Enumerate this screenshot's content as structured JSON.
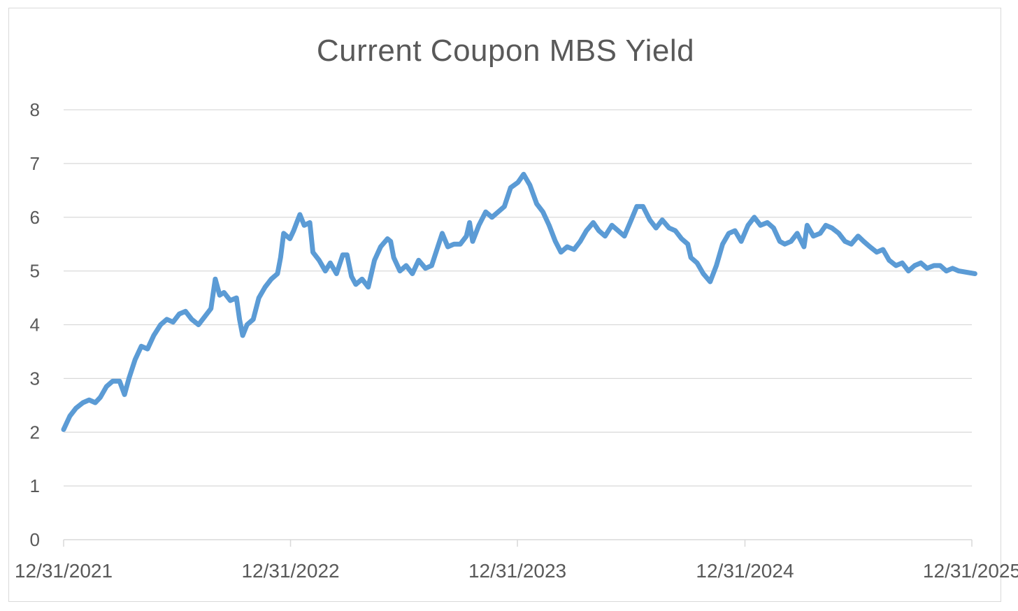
{
  "chart_data": {
    "type": "line",
    "title": "Current Coupon MBS Yield",
    "xlabel": "",
    "ylabel": "",
    "ylim": [
      0,
      8
    ],
    "yticks": [
      "0",
      "1",
      "2",
      "3",
      "4",
      "5",
      "6",
      "7",
      "8"
    ],
    "xlim": [
      "2021-12-31",
      "2025-12-31"
    ],
    "xticks": [
      "12/31/2021",
      "12/31/2022",
      "12/31/2023",
      "12/31/2024",
      "12/31/2025"
    ],
    "grid": true,
    "legend": "none",
    "series": [
      {
        "color": "#5b9bd5",
        "points": [
          [
            "2021-12-31",
            2.05
          ],
          [
            "2022-01-10",
            2.3
          ],
          [
            "2022-01-20",
            2.45
          ],
          [
            "2022-01-31",
            2.55
          ],
          [
            "2022-02-10",
            2.6
          ],
          [
            "2022-02-20",
            2.55
          ],
          [
            "2022-02-28",
            2.65
          ],
          [
            "2022-03-10",
            2.85
          ],
          [
            "2022-03-20",
            2.95
          ],
          [
            "2022-03-31",
            2.95
          ],
          [
            "2022-04-08",
            2.7
          ],
          [
            "2022-04-15",
            3.0
          ],
          [
            "2022-04-25",
            3.35
          ],
          [
            "2022-05-05",
            3.6
          ],
          [
            "2022-05-15",
            3.55
          ],
          [
            "2022-05-25",
            3.8
          ],
          [
            "2022-06-05",
            4.0
          ],
          [
            "2022-06-15",
            4.1
          ],
          [
            "2022-06-25",
            4.05
          ],
          [
            "2022-07-05",
            4.2
          ],
          [
            "2022-07-15",
            4.25
          ],
          [
            "2022-07-25",
            4.1
          ],
          [
            "2022-08-05",
            4.0
          ],
          [
            "2022-08-15",
            4.15
          ],
          [
            "2022-08-25",
            4.3
          ],
          [
            "2022-09-01",
            4.85
          ],
          [
            "2022-09-08",
            4.55
          ],
          [
            "2022-09-15",
            4.6
          ],
          [
            "2022-09-25",
            4.45
          ],
          [
            "2022-10-05",
            4.5
          ],
          [
            "2022-10-10",
            4.1
          ],
          [
            "2022-10-15",
            3.8
          ],
          [
            "2022-10-22",
            4.0
          ],
          [
            "2022-11-01",
            4.1
          ],
          [
            "2022-11-10",
            4.5
          ],
          [
            "2022-11-20",
            4.7
          ],
          [
            "2022-11-30",
            4.85
          ],
          [
            "2022-12-10",
            4.95
          ],
          [
            "2022-12-15",
            5.25
          ],
          [
            "2022-12-20",
            5.7
          ],
          [
            "2022-12-30",
            5.6
          ],
          [
            "2023-01-05",
            5.75
          ],
          [
            "2023-01-10",
            5.9
          ],
          [
            "2023-01-15",
            6.05
          ],
          [
            "2023-01-22",
            5.85
          ],
          [
            "2023-01-31",
            5.9
          ],
          [
            "2023-02-05",
            5.35
          ],
          [
            "2023-02-15",
            5.2
          ],
          [
            "2023-02-25",
            5.0
          ],
          [
            "2023-03-05",
            5.15
          ],
          [
            "2023-03-15",
            4.95
          ],
          [
            "2023-03-25",
            5.3
          ],
          [
            "2023-04-01",
            5.3
          ],
          [
            "2023-04-08",
            4.9
          ],
          [
            "2023-04-15",
            4.75
          ],
          [
            "2023-04-25",
            4.85
          ],
          [
            "2023-05-05",
            4.7
          ],
          [
            "2023-05-15",
            5.2
          ],
          [
            "2023-05-25",
            5.45
          ],
          [
            "2023-06-05",
            5.6
          ],
          [
            "2023-06-10",
            5.55
          ],
          [
            "2023-06-15",
            5.25
          ],
          [
            "2023-06-25",
            5.0
          ],
          [
            "2023-07-05",
            5.1
          ],
          [
            "2023-07-15",
            4.95
          ],
          [
            "2023-07-25",
            5.2
          ],
          [
            "2023-08-05",
            5.05
          ],
          [
            "2023-08-15",
            5.1
          ],
          [
            "2023-08-25",
            5.45
          ],
          [
            "2023-09-01",
            5.7
          ],
          [
            "2023-09-10",
            5.45
          ],
          [
            "2023-09-20",
            5.5
          ],
          [
            "2023-09-30",
            5.5
          ],
          [
            "2023-10-10",
            5.65
          ],
          [
            "2023-10-15",
            5.9
          ],
          [
            "2023-10-20",
            5.55
          ],
          [
            "2023-10-30",
            5.85
          ],
          [
            "2023-11-10",
            6.1
          ],
          [
            "2023-11-20",
            6.0
          ],
          [
            "2023-11-30",
            6.1
          ],
          [
            "2023-12-10",
            6.2
          ],
          [
            "2023-12-20",
            6.55
          ],
          [
            "2024-01-01",
            6.65
          ],
          [
            "2024-01-10",
            6.8
          ],
          [
            "2024-01-20",
            6.6
          ],
          [
            "2024-01-31",
            6.25
          ],
          [
            "2024-02-10",
            6.1
          ],
          [
            "2024-02-20",
            5.85
          ],
          [
            "2024-03-01",
            5.55
          ],
          [
            "2024-03-10",
            5.35
          ],
          [
            "2024-03-20",
            5.45
          ],
          [
            "2024-03-31",
            5.4
          ],
          [
            "2024-04-10",
            5.55
          ],
          [
            "2024-04-20",
            5.75
          ],
          [
            "2024-05-01",
            5.9
          ],
          [
            "2024-05-10",
            5.75
          ],
          [
            "2024-05-20",
            5.65
          ],
          [
            "2024-05-31",
            5.85
          ],
          [
            "2024-06-10",
            5.75
          ],
          [
            "2024-06-20",
            5.65
          ],
          [
            "2024-07-01",
            5.95
          ],
          [
            "2024-07-10",
            6.2
          ],
          [
            "2024-07-20",
            6.2
          ],
          [
            "2024-07-31",
            5.95
          ],
          [
            "2024-08-10",
            5.8
          ],
          [
            "2024-08-20",
            5.95
          ],
          [
            "2024-08-31",
            5.8
          ],
          [
            "2024-09-10",
            5.75
          ],
          [
            "2024-09-20",
            5.6
          ],
          [
            "2024-09-30",
            5.5
          ],
          [
            "2024-10-05",
            5.25
          ],
          [
            "2024-10-15",
            5.15
          ],
          [
            "2024-10-25",
            4.95
          ],
          [
            "2024-11-05",
            4.8
          ],
          [
            "2024-11-15",
            5.1
          ],
          [
            "2024-11-25",
            5.5
          ],
          [
            "2024-12-05",
            5.7
          ],
          [
            "2024-12-15",
            5.75
          ],
          [
            "2024-12-25",
            5.55
          ],
          [
            "2025-01-05",
            5.85
          ],
          [
            "2025-01-15",
            6.0
          ],
          [
            "2025-01-25",
            5.85
          ],
          [
            "2025-02-05",
            5.9
          ],
          [
            "2025-02-15",
            5.8
          ],
          [
            "2025-02-25",
            5.55
          ],
          [
            "2025-03-05",
            5.5
          ],
          [
            "2025-03-15",
            5.55
          ],
          [
            "2025-03-25",
            5.7
          ],
          [
            "2025-04-05",
            5.45
          ],
          [
            "2025-04-10",
            5.85
          ],
          [
            "2025-04-20",
            5.65
          ],
          [
            "2025-05-01",
            5.7
          ],
          [
            "2025-05-10",
            5.85
          ],
          [
            "2025-05-20",
            5.8
          ],
          [
            "2025-05-31",
            5.7
          ],
          [
            "2025-06-10",
            5.55
          ],
          [
            "2025-06-20",
            5.5
          ],
          [
            "2025-07-01",
            5.65
          ],
          [
            "2025-07-10",
            5.55
          ],
          [
            "2025-07-20",
            5.45
          ],
          [
            "2025-07-31",
            5.35
          ],
          [
            "2025-08-10",
            5.4
          ],
          [
            "2025-08-20",
            5.2
          ],
          [
            "2025-08-31",
            5.1
          ],
          [
            "2025-09-10",
            5.15
          ],
          [
            "2025-09-20",
            5.0
          ],
          [
            "2025-09-30",
            5.1
          ],
          [
            "2025-10-10",
            5.15
          ],
          [
            "2025-10-20",
            5.05
          ],
          [
            "2025-10-31",
            5.1
          ],
          [
            "2025-11-10",
            5.1
          ],
          [
            "2025-11-20",
            5.0
          ],
          [
            "2025-11-30",
            5.05
          ],
          [
            "2025-12-10",
            5.0
          ],
          [
            "2026-01-05",
            4.95
          ]
        ]
      }
    ]
  }
}
